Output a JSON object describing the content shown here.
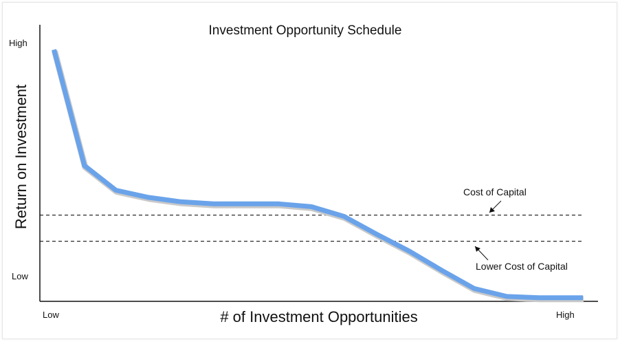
{
  "chart_data": {
    "type": "line",
    "title": "Investment Opportunity Schedule",
    "xlabel": "# of Investment Opportunities",
    "ylabel": "Return on Investment",
    "x_tick_labels": {
      "low": "Low",
      "high": "High"
    },
    "y_tick_labels": {
      "low": "Low",
      "high": "High"
    },
    "xlim": [
      0,
      100
    ],
    "ylim": [
      0,
      100
    ],
    "grid": false,
    "series": [
      {
        "color": "#6aa3ea",
        "x": [
          2.6,
          8.2,
          14,
          20,
          26,
          32,
          38,
          44,
          50,
          56,
          62,
          68,
          74,
          80,
          86,
          92,
          100
        ],
        "y": [
          98.1,
          52.9,
          43.3,
          40.5,
          38.8,
          38.0,
          38.0,
          38.0,
          36.9,
          33.1,
          26.2,
          19.6,
          12.1,
          5.0,
          1.9,
          1.4,
          1.4
        ]
      }
    ],
    "reference_lines": [
      {
        "label": "Cost of Capital",
        "y": 33.6,
        "style": "dashed"
      },
      {
        "label": "Lower Cost of Capital",
        "y": 23.4,
        "style": "dashed"
      }
    ]
  }
}
